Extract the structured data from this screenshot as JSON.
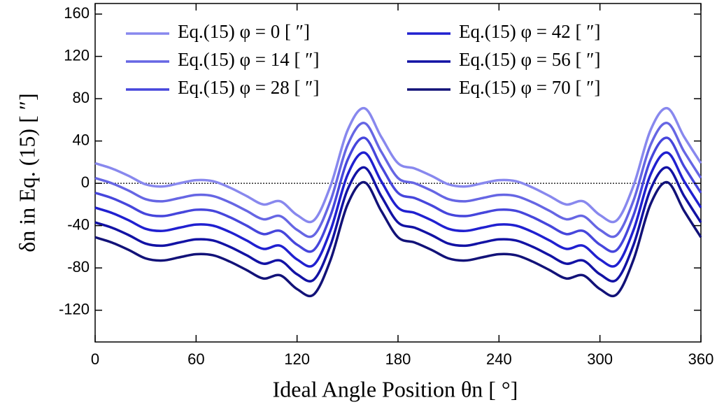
{
  "chart_data": {
    "type": "line",
    "x_label": "Ideal Angle Position θn [ °]",
    "y_label": "δn in Eq. (15) [ ″]",
    "x": [
      0,
      10,
      20,
      30,
      40,
      50,
      60,
      70,
      80,
      90,
      100,
      110,
      120,
      130,
      140,
      150,
      160,
      170,
      180,
      190,
      200,
      210,
      220,
      230,
      240,
      250,
      260,
      270,
      280,
      290,
      300,
      310,
      320,
      330,
      340,
      350,
      360
    ],
    "series": [
      {
        "name": "Eq.(15) φ =   0 [ ″]",
        "color": "#8888ee",
        "values": [
          19,
          14,
          7,
          -1,
          -3,
          0,
          3,
          2,
          -4,
          -12,
          -20,
          -17,
          -30,
          -35,
          -2,
          50,
          71,
          44,
          19,
          14,
          7,
          -1,
          -3,
          0,
          3,
          2,
          -4,
          -12,
          -20,
          -17,
          -30,
          -35,
          -2,
          50,
          71,
          44,
          19
        ]
      },
      {
        "name": "Eq.(15) φ = 14 [ ″]",
        "color": "#6666e4",
        "values": [
          5,
          0,
          -7,
          -15,
          -17,
          -14,
          -11,
          -12,
          -18,
          -26,
          -34,
          -31,
          -44,
          -49,
          -16,
          36,
          57,
          30,
          5,
          0,
          -7,
          -15,
          -17,
          -14,
          -11,
          -12,
          -18,
          -26,
          -34,
          -31,
          -44,
          -49,
          -16,
          36,
          57,
          30,
          5
        ]
      },
      {
        "name": "Eq.(15) φ = 28 [ ″]",
        "color": "#4646dc",
        "values": [
          -9,
          -14,
          -21,
          -29,
          -31,
          -28,
          -25,
          -26,
          -32,
          -40,
          -48,
          -45,
          -58,
          -63,
          -30,
          22,
          43,
          16,
          -9,
          -14,
          -21,
          -29,
          -31,
          -28,
          -25,
          -26,
          -32,
          -40,
          -48,
          -45,
          -58,
          -63,
          -30,
          22,
          43,
          16,
          -9
        ]
      },
      {
        "name": "Eq.(15) φ = 42 [ ″]",
        "color": "#2020d0",
        "values": [
          -23,
          -28,
          -35,
          -43,
          -45,
          -42,
          -39,
          -40,
          -46,
          -54,
          -62,
          -59,
          -72,
          -77,
          -44,
          8,
          29,
          2,
          -23,
          -28,
          -35,
          -43,
          -45,
          -42,
          -39,
          -40,
          -46,
          -54,
          -62,
          -59,
          -72,
          -77,
          -44,
          8,
          29,
          2,
          -23
        ]
      },
      {
        "name": "Eq.(15) φ = 56 [ ″]",
        "color": "#1212a4",
        "values": [
          -37,
          -42,
          -49,
          -57,
          -59,
          -56,
          -53,
          -54,
          -60,
          -68,
          -76,
          -73,
          -86,
          -91,
          -58,
          -6,
          15,
          -12,
          -37,
          -42,
          -49,
          -57,
          -59,
          -56,
          -53,
          -54,
          -60,
          -68,
          -76,
          -73,
          -86,
          -91,
          -58,
          -6,
          15,
          -12,
          -37
        ]
      },
      {
        "name": "Eq.(15) φ = 70 [ ″]",
        "color": "#121278",
        "values": [
          -51,
          -56,
          -63,
          -71,
          -73,
          -70,
          -67,
          -68,
          -74,
          -82,
          -90,
          -87,
          -100,
          -105,
          -72,
          -20,
          1,
          -26,
          -51,
          -56,
          -63,
          -71,
          -73,
          -70,
          -67,
          -68,
          -74,
          -82,
          -90,
          -87,
          -100,
          -105,
          -72,
          -20,
          1,
          -26,
          -51
        ]
      }
    ],
    "xlim": [
      0,
      360
    ],
    "xticks": [
      0,
      60,
      120,
      180,
      240,
      300,
      360
    ],
    "ylim": [
      -150,
      170
    ],
    "yticks": [
      -120,
      -80,
      -40,
      0,
      40,
      80,
      120,
      160
    ],
    "reference_line": 0
  }
}
